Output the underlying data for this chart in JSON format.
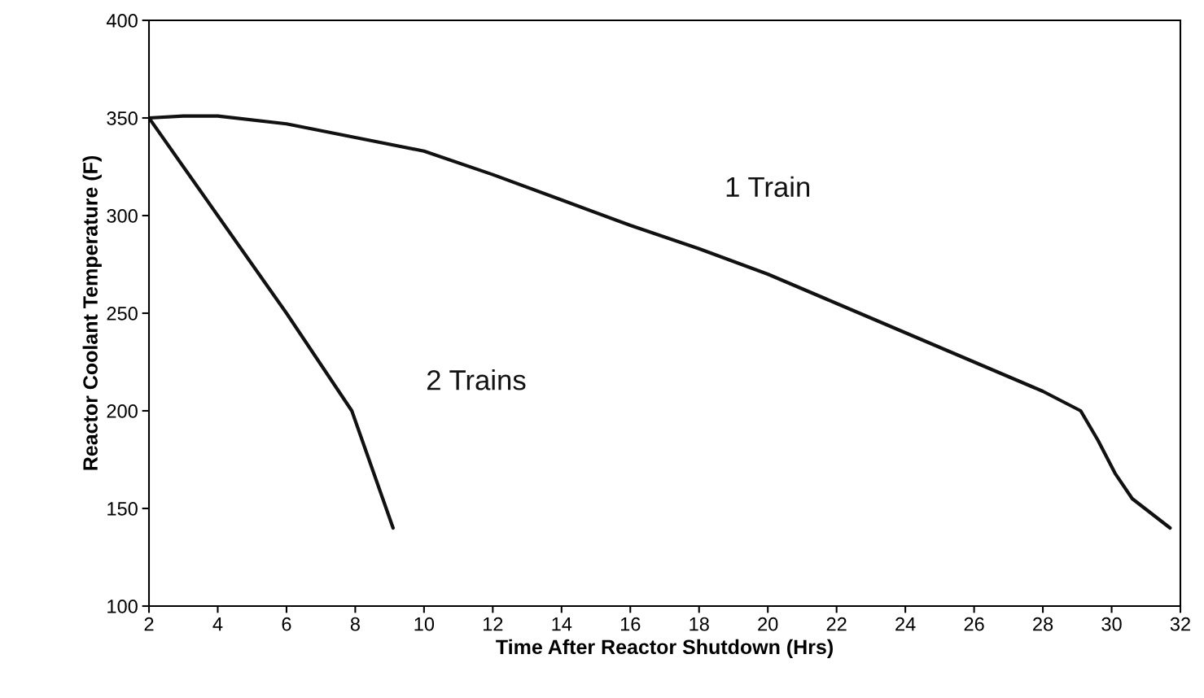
{
  "chart_data": {
    "type": "line",
    "xlabel": "Time After Reactor Shutdown (Hrs)",
    "ylabel": "Reactor Coolant Temperature (F)",
    "xlim": [
      2,
      32
    ],
    "xticks": [
      2,
      4,
      6,
      8,
      10,
      12,
      14,
      16,
      18,
      20,
      22,
      24,
      26,
      28,
      30,
      32
    ],
    "ylim": [
      100,
      400
    ],
    "yticks": [
      100,
      150,
      200,
      250,
      300,
      350,
      400
    ],
    "grid": false,
    "legend": false,
    "marker": "none",
    "line_style": "solid",
    "series": [
      {
        "name": "1 Train",
        "color": "#111111",
        "x": [
          2,
          3,
          4,
          6,
          8,
          10,
          12,
          14,
          16,
          18,
          20,
          22,
          24,
          26,
          28,
          29.1,
          29.6,
          30.1,
          30.6,
          31.7
        ],
        "values": [
          350,
          351,
          351,
          347,
          340,
          333,
          321,
          308,
          295,
          283,
          270,
          255,
          240,
          225,
          210,
          200,
          185,
          168,
          155,
          140
        ]
      },
      {
        "name": "2 Trains",
        "color": "#111111",
        "x": [
          2,
          3,
          4,
          6,
          7.9,
          8.2,
          8.6,
          9,
          9.1
        ],
        "values": [
          350,
          325,
          300,
          250,
          200,
          185,
          165,
          145,
          140
        ]
      }
    ]
  }
}
